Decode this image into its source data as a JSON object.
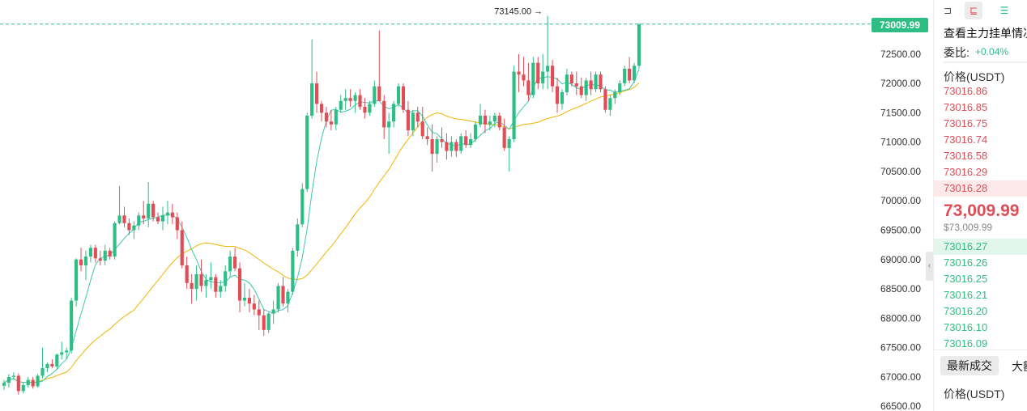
{
  "chart": {
    "current_price_tag": "73009.99",
    "max_label": "73145.00 →",
    "up_color": "#2ebd85",
    "down_color": "#e04d57",
    "ma_fast_color": "#3cc8b0",
    "ma_slow_color": "#f0b400"
  },
  "chart_data": {
    "type": "candlestick",
    "y_ticks": [
      "72500.00",
      "72000.00",
      "71500.00",
      "71000.00",
      "70500.00",
      "70000.00",
      "69500.00",
      "69000.00",
      "68500.00",
      "68000.00",
      "67500.00",
      "67000.00",
      "66500.00"
    ],
    "ylim": [
      66420,
      73420
    ],
    "last_price": 73009.99,
    "max_marker": 73145.0,
    "candles": [
      [
        66850,
        66950,
        66780,
        66900
      ],
      [
        66900,
        67050,
        66820,
        67000
      ],
      [
        67000,
        67080,
        66950,
        67020
      ],
      [
        67020,
        67060,
        66700,
        66760
      ],
      [
        66760,
        66900,
        66720,
        66860
      ],
      [
        66860,
        67000,
        66820,
        66950
      ],
      [
        66950,
        67000,
        66800,
        66840
      ],
      [
        66840,
        67050,
        66820,
        67020
      ],
      [
        67020,
        67500,
        66980,
        67150
      ],
      [
        67150,
        67250,
        67080,
        67220
      ],
      [
        67220,
        67300,
        67150,
        67180
      ],
      [
        67180,
        67400,
        67120,
        67380
      ],
      [
        67380,
        67600,
        67300,
        67420
      ],
      [
        67420,
        67500,
        67300,
        67450
      ],
      [
        67450,
        68350,
        67400,
        68300
      ],
      [
        68300,
        69020,
        68200,
        69000
      ],
      [
        69000,
        69200,
        68800,
        68900
      ],
      [
        68900,
        69150,
        68650,
        69050
      ],
      [
        69050,
        69250,
        68950,
        69200
      ],
      [
        69200,
        69250,
        68950,
        69020
      ],
      [
        69020,
        69150,
        68900,
        68980
      ],
      [
        68980,
        69250,
        68900,
        69150
      ],
      [
        69150,
        69200,
        69000,
        69050
      ],
      [
        69050,
        69650,
        69000,
        69620
      ],
      [
        69620,
        70250,
        69600,
        69750
      ],
      [
        69750,
        69900,
        69550,
        69620
      ],
      [
        69620,
        69700,
        69420,
        69500
      ],
      [
        69500,
        69650,
        69350,
        69580
      ],
      [
        69580,
        69800,
        69500,
        69750
      ],
      [
        69750,
        70000,
        69600,
        69700
      ],
      [
        69700,
        70320,
        69550,
        69950
      ],
      [
        69950,
        70000,
        69650,
        69720
      ],
      [
        69720,
        69800,
        69600,
        69650
      ],
      [
        69650,
        69900,
        69500,
        69750
      ],
      [
        69750,
        70000,
        69600,
        69800
      ],
      [
        69800,
        69950,
        69600,
        69720
      ],
      [
        69720,
        69800,
        69350,
        69500
      ],
      [
        69500,
        69650,
        68850,
        68900
      ],
      [
        68900,
        69050,
        68500,
        68600
      ],
      [
        68600,
        68750,
        68250,
        68500
      ],
      [
        68500,
        68900,
        68300,
        68750
      ],
      [
        68750,
        69000,
        68450,
        68550
      ],
      [
        68550,
        68750,
        68350,
        68650
      ],
      [
        68650,
        68950,
        68500,
        68700
      ],
      [
        68700,
        68750,
        68350,
        68450
      ],
      [
        68450,
        68650,
        68350,
        68550
      ],
      [
        68550,
        68900,
        68450,
        68800
      ],
      [
        68800,
        69150,
        68700,
        69050
      ],
      [
        69050,
        69200,
        68800,
        68850
      ],
      [
        68850,
        68950,
        68100,
        68300
      ],
      [
        68300,
        68600,
        68200,
        68350
      ],
      [
        68350,
        68500,
        68100,
        68250
      ],
      [
        68250,
        68400,
        68050,
        68150
      ],
      [
        68150,
        68300,
        67800,
        68050
      ],
      [
        68050,
        68150,
        67700,
        67800
      ],
      [
        67800,
        68100,
        67750,
        68080
      ],
      [
        68080,
        68300,
        67900,
        68150
      ],
      [
        68150,
        68600,
        68100,
        68550
      ],
      [
        68550,
        68700,
        68200,
        68250
      ],
      [
        68250,
        68500,
        68100,
        68450
      ],
      [
        68450,
        69200,
        68400,
        69150
      ],
      [
        69150,
        69700,
        69050,
        69600
      ],
      [
        69600,
        70300,
        69550,
        70200
      ],
      [
        70200,
        71500,
        70150,
        71450
      ],
      [
        71450,
        72750,
        71400,
        72000
      ],
      [
        72000,
        72200,
        71500,
        71650
      ],
      [
        71650,
        71700,
        71350,
        71500
      ],
      [
        71500,
        71600,
        71250,
        71350
      ],
      [
        71350,
        71550,
        71200,
        71300
      ],
      [
        71300,
        71600,
        71200,
        71550
      ],
      [
        71550,
        71800,
        71500,
        71700
      ],
      [
        71700,
        71900,
        71550,
        71750
      ],
      [
        71750,
        71900,
        71600,
        71700
      ],
      [
        71700,
        71850,
        71500,
        71800
      ],
      [
        71800,
        71900,
        71550,
        71600
      ],
      [
        71600,
        71750,
        71400,
        71500
      ],
      [
        71500,
        71700,
        71450,
        71650
      ],
      [
        71650,
        72050,
        71600,
        71950
      ],
      [
        71950,
        72900,
        71700,
        71700
      ],
      [
        71700,
        71800,
        71050,
        71250
      ],
      [
        71250,
        71500,
        70800,
        71350
      ],
      [
        71350,
        71700,
        71250,
        71650
      ],
      [
        71650,
        72000,
        71600,
        71950
      ],
      [
        71950,
        72000,
        71500,
        71550
      ],
      [
        71550,
        71700,
        71100,
        71200
      ],
      [
        71200,
        71550,
        71100,
        71500
      ],
      [
        71500,
        71600,
        71250,
        71350
      ],
      [
        71350,
        71600,
        71050,
        71100
      ],
      [
        71100,
        71250,
        70950,
        71050
      ],
      [
        71050,
        71300,
        70500,
        70800
      ],
      [
        70800,
        71100,
        70650,
        71050
      ],
      [
        71050,
        71250,
        70900,
        71000
      ],
      [
        71000,
        71150,
        70700,
        70850
      ],
      [
        70850,
        71100,
        70750,
        71000
      ],
      [
        71000,
        71050,
        70750,
        70850
      ],
      [
        70850,
        71150,
        70800,
        71100
      ],
      [
        71100,
        71200,
        70900,
        70950
      ],
      [
        70950,
        71150,
        70900,
        71050
      ],
      [
        71050,
        71350,
        71000,
        71300
      ],
      [
        71300,
        71650,
        71250,
        71450
      ],
      [
        71450,
        71550,
        71150,
        71300
      ],
      [
        71300,
        71450,
        71200,
        71350
      ],
      [
        71350,
        71500,
        71250,
        71450
      ],
      [
        71450,
        71500,
        71200,
        71250
      ],
      [
        71250,
        71400,
        70850,
        70900
      ],
      [
        70900,
        71100,
        70500,
        71050
      ],
      [
        71050,
        72300,
        71000,
        72200
      ],
      [
        72200,
        72500,
        71850,
        72150
      ],
      [
        72150,
        72450,
        71950,
        72050
      ],
      [
        72050,
        72350,
        71700,
        71800
      ],
      [
        71800,
        72450,
        71750,
        72350
      ],
      [
        72350,
        72450,
        71900,
        72000
      ],
      [
        72000,
        72500,
        71900,
        72200
      ],
      [
        72200,
        73150,
        71900,
        72300
      ],
      [
        72300,
        72400,
        71850,
        71950
      ],
      [
        71950,
        72100,
        71500,
        71650
      ],
      [
        71650,
        71900,
        71550,
        71850
      ],
      [
        71850,
        72250,
        71800,
        72150
      ],
      [
        72150,
        72200,
        71950,
        72000
      ],
      [
        72000,
        72200,
        71800,
        71950
      ],
      [
        71950,
        72100,
        71750,
        71800
      ],
      [
        71800,
        72100,
        71700,
        72050
      ],
      [
        72050,
        72200,
        71800,
        71900
      ],
      [
        71900,
        72200,
        71850,
        72150
      ],
      [
        72150,
        72200,
        71850,
        71900
      ],
      [
        71900,
        71950,
        71500,
        71550
      ],
      [
        71550,
        71800,
        71450,
        71750
      ],
      [
        71750,
        71900,
        71650,
        71850
      ],
      [
        71850,
        72050,
        71800,
        72000
      ],
      [
        72000,
        72300,
        71950,
        72250
      ],
      [
        72250,
        72450,
        72000,
        72050
      ],
      [
        72050,
        72350,
        72000,
        72300
      ],
      [
        72300,
        73009.99,
        72250,
        73009.99
      ]
    ]
  },
  "panel": {
    "title": "查看主力挂单情况",
    "ratio_label": "委比:",
    "ratio_value": "+0.04%",
    "price_col": "价格(USDT)",
    "asks": [
      "73016.86",
      "73016.85",
      "73016.75",
      "73016.74",
      "73016.58",
      "73016.29",
      "73016.28"
    ],
    "current_price": "73,009.99",
    "current_usd": "$73,009.99",
    "bids": [
      "73016.27",
      "73016.26",
      "73016.25",
      "73016.21",
      "73016.20",
      "73016.10",
      "73016.09"
    ],
    "tab_latest": "最新成交",
    "tab_large": "大额",
    "price_col_2": "价格(USDT)"
  }
}
